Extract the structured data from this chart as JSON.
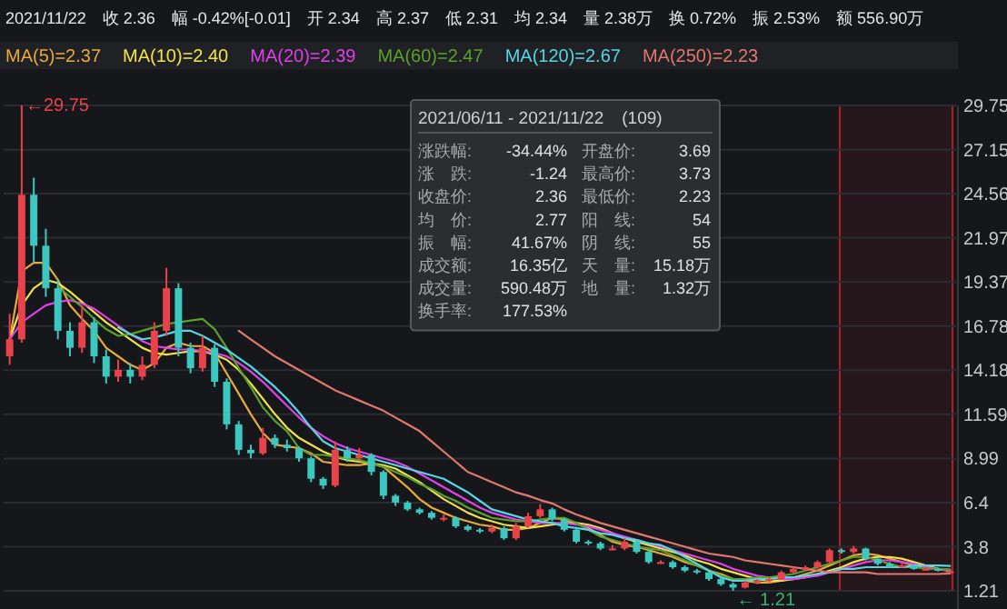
{
  "chart_data": {
    "type": "candlestick",
    "categories": [
      null,
      null,
      null,
      null,
      null,
      null,
      null,
      null,
      null,
      null,
      null,
      null,
      null,
      null,
      null,
      null,
      null,
      null,
      null,
      null,
      null,
      null,
      null,
      null,
      null,
      null,
      null,
      null,
      null,
      null,
      null,
      null,
      null,
      null,
      null,
      null,
      null,
      null,
      null,
      null,
      null,
      null,
      null,
      null,
      null,
      null,
      null,
      null,
      null,
      null,
      null,
      null,
      null,
      null,
      null,
      null,
      null,
      null,
      null,
      null,
      null,
      null,
      null,
      null,
      null,
      null,
      null,
      null,
      null,
      null,
      null,
      null,
      null,
      null,
      null,
      null,
      null,
      null,
      null
    ],
    "ohlc": [
      [
        15.0,
        17.5,
        14.5,
        16.0
      ],
      [
        16.0,
        29.75,
        15.8,
        24.5
      ],
      [
        24.5,
        25.5,
        20.5,
        21.5
      ],
      [
        21.5,
        22.5,
        18.5,
        19.0
      ],
      [
        19.0,
        19.5,
        16.0,
        16.5
      ],
      [
        16.5,
        17.0,
        15.0,
        15.5
      ],
      [
        15.5,
        18.0,
        15.2,
        17.0
      ],
      [
        17.0,
        17.3,
        14.6,
        15.0
      ],
      [
        15.0,
        15.4,
        13.4,
        13.8
      ],
      [
        13.8,
        14.8,
        13.5,
        14.2
      ],
      [
        14.2,
        14.6,
        13.4,
        13.8
      ],
      [
        13.8,
        15.0,
        13.6,
        14.5
      ],
      [
        14.5,
        17.0,
        14.3,
        16.5
      ],
      [
        16.5,
        20.2,
        16.2,
        19.0
      ],
      [
        19.0,
        19.3,
        15.0,
        15.5
      ],
      [
        15.5,
        15.8,
        14.0,
        14.3
      ],
      [
        14.3,
        16.2,
        14.1,
        15.5
      ],
      [
        15.5,
        15.7,
        13.2,
        13.5
      ],
      [
        13.5,
        13.7,
        10.7,
        11.0
      ],
      [
        11.0,
        11.2,
        9.2,
        9.5
      ],
      [
        9.5,
        9.8,
        9.0,
        9.3
      ],
      [
        9.3,
        10.8,
        9.2,
        10.2
      ],
      [
        10.2,
        10.4,
        9.6,
        9.8
      ],
      [
        9.8,
        10.1,
        9.4,
        9.6
      ],
      [
        9.6,
        9.7,
        8.8,
        9.0
      ],
      [
        9.0,
        9.1,
        7.6,
        7.8
      ],
      [
        7.8,
        7.9,
        7.2,
        7.4
      ],
      [
        7.4,
        10.0,
        7.3,
        9.5
      ],
      [
        9.5,
        9.7,
        8.8,
        9.0
      ],
      [
        9.0,
        9.6,
        8.9,
        9.2
      ],
      [
        9.2,
        9.3,
        8.0,
        8.2
      ],
      [
        8.2,
        8.3,
        6.6,
        6.8
      ],
      [
        6.8,
        6.9,
        6.2,
        6.4
      ],
      [
        6.4,
        6.5,
        5.9,
        6.0
      ],
      [
        6.0,
        6.1,
        5.7,
        5.8
      ],
      [
        5.8,
        5.9,
        5.4,
        5.5
      ],
      [
        5.5,
        5.7,
        5.3,
        5.5
      ],
      [
        5.5,
        5.6,
        4.9,
        5.0
      ],
      [
        5.0,
        5.1,
        4.7,
        4.8
      ],
      [
        4.8,
        4.9,
        4.6,
        4.7
      ],
      [
        4.7,
        5.1,
        4.6,
        4.9
      ],
      [
        4.9,
        5.0,
        4.2,
        4.3
      ],
      [
        4.3,
        5.2,
        4.2,
        5.0
      ],
      [
        5.0,
        5.8,
        4.9,
        5.6
      ],
      [
        5.6,
        6.3,
        5.5,
        6.0
      ],
      [
        6.0,
        6.1,
        5.3,
        5.4
      ],
      [
        5.4,
        5.5,
        4.7,
        4.8
      ],
      [
        4.8,
        4.9,
        4.0,
        4.1
      ],
      [
        4.1,
        4.2,
        3.9,
        4.0
      ],
      [
        4.0,
        4.1,
        3.6,
        3.7
      ],
      [
        3.7,
        3.9,
        3.6,
        3.7
      ],
      [
        3.7,
        4.3,
        3.6,
        4.1
      ],
      [
        4.1,
        4.2,
        3.4,
        3.5
      ],
      [
        3.5,
        3.6,
        2.8,
        2.9
      ],
      [
        2.9,
        3.0,
        2.8,
        2.9
      ],
      [
        2.9,
        3.0,
        2.5,
        2.6
      ],
      [
        2.6,
        2.7,
        2.3,
        2.4
      ],
      [
        2.4,
        2.5,
        2.2,
        2.3
      ],
      [
        2.3,
        2.35,
        1.8,
        1.9
      ],
      [
        1.9,
        2.0,
        1.5,
        1.6
      ],
      [
        1.6,
        1.7,
        1.21,
        1.4
      ],
      [
        1.4,
        1.8,
        1.35,
        1.7
      ],
      [
        1.7,
        1.9,
        1.6,
        1.8
      ],
      [
        1.8,
        2.0,
        1.7,
        1.9
      ],
      [
        1.9,
        2.4,
        1.85,
        2.3
      ],
      [
        2.3,
        2.6,
        2.2,
        2.5
      ],
      [
        2.5,
        2.7,
        2.4,
        2.6
      ],
      [
        2.6,
        3.0,
        2.5,
        2.9
      ],
      [
        2.9,
        3.7,
        2.8,
        3.6
      ],
      [
        3.6,
        3.7,
        3.4,
        3.5
      ],
      [
        3.5,
        3.85,
        3.4,
        3.7
      ],
      [
        3.7,
        3.75,
        3.0,
        3.1
      ],
      [
        3.1,
        3.2,
        2.7,
        2.8
      ],
      [
        2.8,
        2.9,
        2.55,
        2.6
      ],
      [
        2.6,
        2.8,
        2.55,
        2.7
      ],
      [
        2.7,
        2.75,
        2.45,
        2.5
      ],
      [
        2.5,
        2.6,
        2.4,
        2.5
      ],
      [
        2.5,
        2.55,
        2.35,
        2.4
      ],
      [
        2.34,
        2.37,
        2.31,
        2.36
      ]
    ],
    "series": [
      {
        "name": "MA(5)=2.37",
        "type": "line",
        "color": "#e8a93a",
        "values": [
          16,
          20,
          20.5,
          20.5,
          19.5,
          18,
          17.2,
          16.5,
          15.5,
          15,
          14.5,
          14.2,
          14.6,
          15.5,
          15.8,
          15.6,
          15.6,
          15.2,
          14,
          12.8,
          11.6,
          10.5,
          9.8,
          9.7,
          9.6,
          9.3,
          8.8,
          8.7,
          8.6,
          8.6,
          8.7,
          8.5,
          7.9,
          7.3,
          6.6,
          6.1,
          5.8,
          5.5,
          5.3,
          5.1,
          5.0,
          4.8,
          4.8,
          4.9,
          5.2,
          5.5,
          5.4,
          5.2,
          4.9,
          4.5,
          4.1,
          3.9,
          3.8,
          3.6,
          3.4,
          3.2,
          2.9,
          2.7,
          2.4,
          2.2,
          1.9,
          1.8,
          1.7,
          1.7,
          1.8,
          2.0,
          2.2,
          2.4,
          2.7,
          3.0,
          3.3,
          3.4,
          3.3,
          3.1,
          2.9,
          2.7,
          2.6,
          2.5,
          2.37
        ]
      },
      {
        "name": "MA(10)=2.40",
        "type": "line",
        "color": "#f0e24a",
        "values": [
          16,
          18,
          19,
          19.5,
          19.3,
          18.8,
          18.2,
          17.6,
          17,
          16.5,
          16,
          15.5,
          15.2,
          15.1,
          15.2,
          15.3,
          15.3,
          15.1,
          14.8,
          14.2,
          13.4,
          12.5,
          11.6,
          10.8,
          10.2,
          9.8,
          9.4,
          9.1,
          8.9,
          8.8,
          8.7,
          8.6,
          8.4,
          8.0,
          7.6,
          7.1,
          6.6,
          6.2,
          5.8,
          5.5,
          5.3,
          5.1,
          5.0,
          4.9,
          5.0,
          5.1,
          5.2,
          5.2,
          5.1,
          4.9,
          4.6,
          4.3,
          4.1,
          3.9,
          3.7,
          3.5,
          3.3,
          3.0,
          2.8,
          2.5,
          2.3,
          2.1,
          1.9,
          1.8,
          1.8,
          1.9,
          2.0,
          2.2,
          2.4,
          2.6,
          2.9,
          3.1,
          3.2,
          3.2,
          3.1,
          2.9,
          2.7,
          2.5,
          2.4
        ]
      },
      {
        "name": "MA(20)=2.39",
        "type": "line",
        "color": "#e040e8",
        "values": [
          16,
          17,
          17.5,
          18,
          18.2,
          18.3,
          18.1,
          17.8,
          17.3,
          16.8,
          16.3,
          15.9,
          15.6,
          15.5,
          15.4,
          15.4,
          15.3,
          15.2,
          15.0,
          14.6,
          14.1,
          13.5,
          12.8,
          12.1,
          11.4,
          10.8,
          10.3,
          9.9,
          9.6,
          9.4,
          9.2,
          9.0,
          8.8,
          8.5,
          8.1,
          7.7,
          7.3,
          6.9,
          6.5,
          6.1,
          5.8,
          5.6,
          5.4,
          5.3,
          5.2,
          5.2,
          5.2,
          5.1,
          5.0,
          4.8,
          4.6,
          4.4,
          4.2,
          4.0,
          3.8,
          3.6,
          3.4,
          3.2,
          3.0,
          2.8,
          2.5,
          2.3,
          2.1,
          2.0,
          1.9,
          1.9,
          2.0,
          2.1,
          2.3,
          2.5,
          2.7,
          2.9,
          3.0,
          3.0,
          2.9,
          2.8,
          2.6,
          2.5,
          2.39
        ]
      },
      {
        "name": "MA(60)=2.47",
        "type": "line",
        "color": "#5aa02c",
        "values": [
          null,
          null,
          null,
          null,
          19.1,
          18.5,
          17.9,
          17.2,
          16.6,
          16.2,
          16.3,
          16.5,
          16.7,
          16.9,
          17.0,
          17.1,
          17.2,
          16.6,
          15.5,
          14.3,
          13.2,
          12.0,
          11.2,
          10.6,
          9.6,
          9.2,
          9.2,
          9.1,
          9.0,
          8.9,
          8.7,
          8.5,
          8.2,
          7.9,
          7.5,
          7.2,
          6.8,
          6.5,
          6.1,
          5.8,
          5.5,
          5.4,
          5.3,
          5.3,
          5.4,
          5.5,
          5.5,
          5.2,
          4.8,
          4.4,
          4.2,
          4.0,
          3.8,
          3.7,
          3.6,
          3.3,
          3.0,
          2.7,
          2.4,
          2.1,
          1.9,
          1.9,
          2.0,
          2.0,
          2.1,
          2.2,
          2.4,
          2.6,
          2.8,
          3.0,
          3.2,
          3.2,
          3.0,
          2.8,
          2.6,
          2.6,
          2.5,
          2.5,
          2.47
        ]
      },
      {
        "name": "MA(120)=2.67",
        "type": "line",
        "color": "#58d4e4",
        "values": [
          null,
          null,
          null,
          null,
          null,
          null,
          null,
          null,
          null,
          16.7,
          16.3,
          16.0,
          16.1,
          16.3,
          16.5,
          16.5,
          16.2,
          15.8,
          15.4,
          14.9,
          14.4,
          13.8,
          13.2,
          12.5,
          11.7,
          10.8,
          10.0,
          9.6,
          9.4,
          9.2,
          9.0,
          8.8,
          8.6,
          8.4,
          8.2,
          8.0,
          7.8,
          7.4,
          7.0,
          6.5,
          6.0,
          5.8,
          5.6,
          5.4,
          5.3,
          5.2,
          5.0,
          4.9,
          4.8,
          4.6,
          4.5,
          4.3,
          4.2,
          4.0,
          3.9,
          3.6,
          3.2,
          2.8,
          2.4,
          2.0,
          1.8,
          1.8,
          1.9,
          1.9,
          2.0,
          2.0,
          2.1,
          2.2,
          2.3,
          2.5,
          2.5,
          2.6,
          2.6,
          2.6,
          2.6,
          2.7,
          2.7,
          2.7,
          2.67
        ]
      },
      {
        "name": "MA(250)=2.23",
        "type": "line",
        "color": "#e07870",
        "values": [
          null,
          null,
          null,
          null,
          null,
          null,
          null,
          null,
          null,
          null,
          null,
          null,
          null,
          null,
          null,
          null,
          null,
          null,
          null,
          16.5,
          16.0,
          15.5,
          15.0,
          14.6,
          14.2,
          13.8,
          13.4,
          13.0,
          12.7,
          12.4,
          12.1,
          11.8,
          11.4,
          11.0,
          10.6,
          10.0,
          9.4,
          8.8,
          8.2,
          7.9,
          7.6,
          7.3,
          7.0,
          6.8,
          6.55,
          6.35,
          6.0,
          5.7,
          5.45,
          5.2,
          5.0,
          4.8,
          4.6,
          4.4,
          4.2,
          4.0,
          3.8,
          3.6,
          3.4,
          3.3,
          3.2,
          3.0,
          2.9,
          2.8,
          2.7,
          2.6,
          2.5,
          2.4,
          2.3,
          2.3,
          2.3,
          2.3,
          2.2,
          2.2,
          2.2,
          2.2,
          2.2,
          2.2,
          2.23
        ]
      }
    ],
    "ylim": [
      1.21,
      29.75
    ],
    "yticks": [
      29.75,
      27.15,
      24.56,
      21.97,
      19.37,
      16.78,
      14.18,
      11.59,
      8.99,
      6.4,
      3.8,
      1.21
    ],
    "grid": "y",
    "tick_labels": "y",
    "legend": "top left",
    "annotations": [
      "2021/11/22　收 2.36　幅 -0.42%[-0.01]　开 2.34　高 2.37　低 2.31　均 2.34　量 2.38万　换 0.72%　振 2.53%　额 556.90万",
      "2021/06/11 - 2021/11/22　(109)",
      "涨跌幅:",
      "-34.44%",
      "开盘价:",
      "3.69",
      "涨　跌:",
      "-1.24",
      "最高价:",
      "3.73",
      "收盘价:",
      "2.36",
      "最低价:",
      "2.23",
      "均　价:",
      "2.77",
      "阳　线:",
      "54",
      "振　幅:",
      "41.67%",
      "阴　线:",
      "55",
      "成交额:",
      "16.35亿",
      "天　量:",
      "15.18万",
      "成交量:",
      "590.48万",
      "地　量:",
      "1.32万",
      "换手率:",
      "177.53%",
      "←29.75",
      "← 1.21"
    ]
  }
}
